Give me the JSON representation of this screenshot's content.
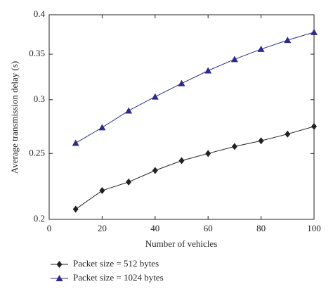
{
  "chart_data": {
    "type": "line",
    "x_label": "Number of vehicles",
    "y_label": "Average transmission delay (s)",
    "x": [
      10,
      20,
      30,
      40,
      50,
      60,
      70,
      80,
      90,
      100
    ],
    "series": [
      {
        "name": "Packet size = 512 bytes",
        "color": "#222222",
        "marker": "diamond",
        "values": [
          0.207,
          0.2205,
          0.227,
          0.236,
          0.244,
          0.25,
          0.256,
          0.261,
          0.267,
          0.274
        ]
      },
      {
        "name": "Packet size = 1024 bytes",
        "color": "#2b2b8c",
        "marker": "triangle",
        "values": [
          0.259,
          0.273,
          0.289,
          0.303,
          0.317,
          0.331,
          0.344,
          0.356,
          0.367,
          0.377
        ]
      }
    ],
    "xlim": [
      0,
      100
    ],
    "xticks": [
      0,
      20,
      40,
      60,
      80,
      100
    ],
    "ylim": [
      0.2,
      0.4
    ],
    "yticks": [
      0.2,
      0.25,
      0.3,
      0.35,
      0.4
    ],
    "y_scale": "log",
    "grid": false,
    "legend": "bottom"
  }
}
